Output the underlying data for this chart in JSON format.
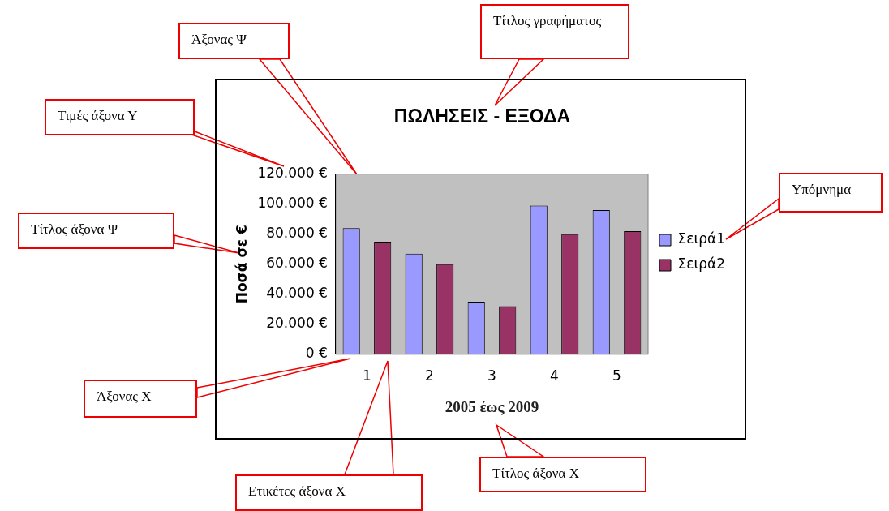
{
  "chart_data": {
    "type": "bar",
    "title": "ΠΩΛΗΣΕΙΣ - ΕΞΟΔΑ",
    "xlabel": "2005 έως 2009",
    "ylabel": "Ποσά σε €",
    "categories": [
      "1",
      "2",
      "3",
      "4",
      "5"
    ],
    "series": [
      {
        "name": "Σειρά1",
        "color": "#9999ff",
        "values": [
          84000,
          67000,
          35000,
          99000,
          96000
        ]
      },
      {
        "name": "Σειρά2",
        "color": "#993366",
        "values": [
          75000,
          60000,
          32000,
          80000,
          82000
        ]
      }
    ],
    "ylim": [
      0,
      120000
    ],
    "yticks": [
      {
        "value": 0,
        "label": "0 €"
      },
      {
        "value": 20000,
        "label": "20.000 €"
      },
      {
        "value": 40000,
        "label": "40.000 €"
      },
      {
        "value": 60000,
        "label": "60.000 €"
      },
      {
        "value": 80000,
        "label": "80.000 €"
      },
      {
        "value": 100000,
        "label": "100.000 €"
      },
      {
        "value": 120000,
        "label": "120.000 €"
      }
    ],
    "grid": "y",
    "legend": "right",
    "annotations": [
      "Άξονας Ψ",
      "Τίτλος γραφήματος",
      "Τιμές άξονα Υ",
      "Τίτλος άξονα Ψ",
      "Υπόμνημα",
      "Άξονας X",
      "Ετικέτες άξονα X",
      "Τίτλος άξονα X"
    ]
  }
}
